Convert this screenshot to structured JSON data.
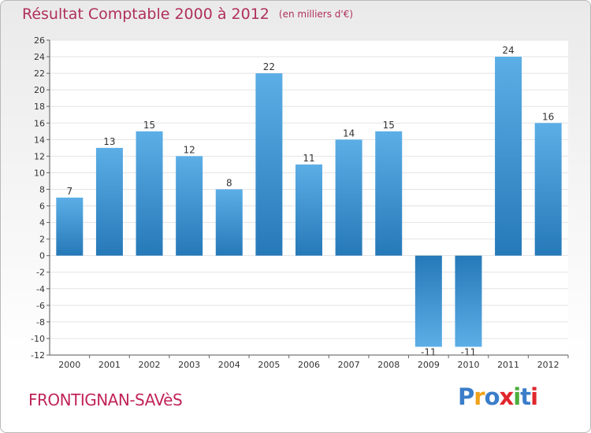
{
  "title": "Résultat Comptable 2000 à 2012",
  "unit": "(en milliers d'€)",
  "commune": "FRONTIGNAN-SAVèS",
  "logo": {
    "text": "Proxiti",
    "colors": [
      "#3a7dc9",
      "#f0a21b",
      "#3a7dc9",
      "#e0262d",
      "#4cae3c",
      "#3a7dc9",
      "#e0262d"
    ]
  },
  "colors": {
    "bar_top": "#5caee6",
    "bar_bottom": "#2679b8",
    "title": "#b0305a",
    "commune": "#c0245a"
  },
  "chart_data": {
    "type": "bar",
    "title": "Résultat Comptable 2000 à 2012",
    "ylabel": "en milliers d'€",
    "categories": [
      "2000",
      "2001",
      "2002",
      "2003",
      "2004",
      "2005",
      "2006",
      "2007",
      "2008",
      "2009",
      "2010",
      "2011",
      "2012"
    ],
    "values": [
      7,
      13,
      15,
      12,
      8,
      22,
      11,
      14,
      15,
      -11,
      -11,
      24,
      16
    ],
    "ylim": [
      -12,
      26
    ],
    "yticks": [
      -12,
      -10,
      -8,
      -6,
      -4,
      -2,
      0,
      2,
      4,
      6,
      8,
      10,
      12,
      14,
      16,
      18,
      20,
      22,
      24,
      26
    ],
    "grid": true
  }
}
